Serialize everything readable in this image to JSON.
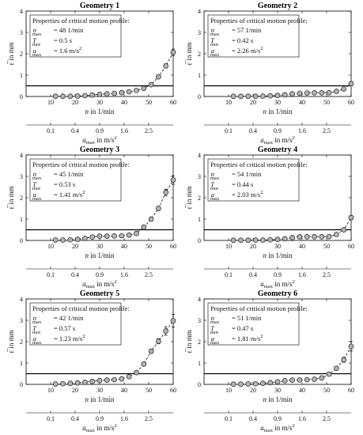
{
  "chart_data": [
    {
      "type": "scatter",
      "title": "Geometry 1",
      "x": [
        12,
        15,
        18,
        21,
        24,
        27,
        30,
        33,
        36,
        39,
        42,
        45,
        48,
        51,
        54,
        57,
        60
      ],
      "y": [
        0.01,
        0.01,
        0.01,
        0.02,
        0.04,
        0.07,
        0.1,
        0.12,
        0.15,
        0.18,
        0.22,
        0.28,
        0.38,
        0.55,
        0.92,
        1.43,
        2.07
      ],
      "err": [
        0.02,
        0.02,
        0.02,
        0.02,
        0.02,
        0.03,
        0.03,
        0.03,
        0.03,
        0.03,
        0.04,
        0.05,
        0.05,
        0.06,
        0.07,
        0.1,
        0.15
      ],
      "threshold": 0.5,
      "ylim": [
        0,
        4
      ],
      "xlim": [
        0,
        60
      ],
      "yticks": [
        0,
        1,
        2,
        3,
        4
      ],
      "xticks": [
        10,
        20,
        30,
        40,
        50,
        60
      ],
      "ylabel": "ε̅ in mm",
      "xlabel": "n in 1/min",
      "x2label": "a_max in m/s²",
      "x2ticks": [
        "0.1",
        "0.4",
        "0.9",
        "1.6",
        "2.5"
      ],
      "info": {
        "heading": "Properties of critical motion profile:",
        "n_max": "= 48 1/min",
        "T_mot": "= 0.5 s",
        "a_max": "= 1.6 m/s"
      }
    },
    {
      "type": "scatter",
      "title": "Geometry 2",
      "x": [
        12,
        15,
        18,
        21,
        24,
        27,
        30,
        33,
        36,
        39,
        42,
        45,
        48,
        51,
        54,
        57,
        60
      ],
      "y": [
        0.01,
        0.01,
        0.01,
        0.01,
        0.02,
        0.03,
        0.05,
        0.08,
        0.12,
        0.15,
        0.16,
        0.17,
        0.17,
        0.18,
        0.24,
        0.35,
        0.6
      ],
      "err": [
        0.02,
        0.02,
        0.02,
        0.02,
        0.02,
        0.02,
        0.03,
        0.03,
        0.03,
        0.03,
        0.03,
        0.03,
        0.03,
        0.04,
        0.04,
        0.05,
        0.1
      ],
      "threshold": 0.5,
      "ylim": [
        0,
        4
      ],
      "xlim": [
        0,
        60
      ],
      "yticks": [
        0,
        1,
        2,
        3,
        4
      ],
      "xticks": [
        10,
        20,
        30,
        40,
        50,
        60
      ],
      "ylabel": "ε̅ in mm",
      "xlabel": "n in 1/min",
      "x2label": "a_max in m/s²",
      "x2ticks": [
        "0.1",
        "0.4",
        "0.9",
        "1.6",
        "2.5"
      ],
      "info": {
        "heading": "Properties of critical motion profile:",
        "n_max": "= 57 1/min",
        "T_mot": "= 0.42 s",
        "a_max": "= 2.26 m/s"
      }
    },
    {
      "type": "scatter",
      "title": "Geometry 3",
      "x": [
        12,
        15,
        18,
        21,
        24,
        27,
        30,
        33,
        36,
        39,
        42,
        45,
        48,
        51,
        54,
        57,
        60
      ],
      "y": [
        0.02,
        0.02,
        0.03,
        0.05,
        0.1,
        0.16,
        0.2,
        0.2,
        0.21,
        0.22,
        0.25,
        0.33,
        0.62,
        1.0,
        1.5,
        2.25,
        2.83
      ],
      "err": [
        0.02,
        0.02,
        0.02,
        0.02,
        0.03,
        0.03,
        0.04,
        0.04,
        0.04,
        0.04,
        0.04,
        0.05,
        0.06,
        0.07,
        0.1,
        0.15,
        0.2
      ],
      "threshold": 0.5,
      "ylim": [
        0,
        4
      ],
      "xlim": [
        0,
        60
      ],
      "yticks": [
        0,
        1,
        2,
        3,
        4
      ],
      "xticks": [
        10,
        20,
        30,
        40,
        50,
        60
      ],
      "ylabel": "ε̅ in mm",
      "xlabel": "n in 1/min",
      "x2label": "a_max in m/s²",
      "x2ticks": [
        "0.1",
        "0.4",
        "0.9",
        "1.6",
        "2.5"
      ],
      "info": {
        "heading": "Properties of critical motion profile:",
        "n_max": "= 45 1/min",
        "T_mot": "= 0.53 s",
        "a_max": "= 1.41 m/s"
      }
    },
    {
      "type": "scatter",
      "title": "Geometry 4",
      "x": [
        12,
        15,
        18,
        21,
        24,
        27,
        30,
        33,
        36,
        39,
        42,
        45,
        48,
        51,
        54,
        57,
        60
      ],
      "y": [
        0.01,
        0.01,
        0.01,
        0.02,
        0.02,
        0.03,
        0.05,
        0.08,
        0.13,
        0.17,
        0.17,
        0.17,
        0.17,
        0.18,
        0.28,
        0.5,
        1.07
      ],
      "err": [
        0.02,
        0.02,
        0.02,
        0.02,
        0.02,
        0.02,
        0.03,
        0.03,
        0.03,
        0.03,
        0.03,
        0.03,
        0.03,
        0.04,
        0.05,
        0.06,
        0.1
      ],
      "threshold": 0.5,
      "ylim": [
        0,
        4
      ],
      "xlim": [
        0,
        60
      ],
      "yticks": [
        0,
        1,
        2,
        3,
        4
      ],
      "xticks": [
        10,
        20,
        30,
        40,
        50,
        60
      ],
      "ylabel": "ε̅ in mm",
      "xlabel": "n in 1/min",
      "x2label": "a_max in m/s²",
      "x2ticks": [
        "0.1",
        "0.4",
        "0.9",
        "1.6",
        "2.5"
      ],
      "info": {
        "heading": "Properties of critical motion profile:",
        "n_max": "= 54 1/min",
        "T_mot": "= 0.44 s",
        "a_max": "= 2.03 m/s"
      }
    },
    {
      "type": "scatter",
      "title": "Geometry 5",
      "x": [
        12,
        15,
        18,
        21,
        24,
        27,
        30,
        33,
        36,
        39,
        42,
        45,
        48,
        51,
        54,
        57,
        60
      ],
      "y": [
        0.02,
        0.03,
        0.05,
        0.07,
        0.1,
        0.14,
        0.18,
        0.2,
        0.22,
        0.26,
        0.36,
        0.55,
        0.95,
        1.55,
        2.02,
        2.5,
        2.98
      ],
      "err": [
        0.02,
        0.02,
        0.02,
        0.02,
        0.03,
        0.03,
        0.04,
        0.04,
        0.04,
        0.05,
        0.05,
        0.06,
        0.08,
        0.1,
        0.12,
        0.2,
        0.3
      ],
      "threshold": 0.5,
      "ylim": [
        0,
        4
      ],
      "xlim": [
        0,
        60
      ],
      "yticks": [
        0,
        1,
        2,
        3,
        4
      ],
      "xticks": [
        10,
        20,
        30,
        40,
        50,
        60
      ],
      "ylabel": "ε̅ in mm",
      "xlabel": "n in 1/min",
      "x2label": "a_max in m/s²",
      "x2ticks": [
        "0.1",
        "0.4",
        "0.9",
        "1.6",
        "2.5"
      ],
      "info": {
        "heading": "Properties of critical motion profile:",
        "n_max": "= 42 1/min",
        "T_mot": "= 0.57 s",
        "a_max": "= 1.23 m/s"
      }
    },
    {
      "type": "scatter",
      "title": "Geometry 6",
      "x": [
        12,
        15,
        18,
        21,
        24,
        27,
        30,
        33,
        36,
        39,
        42,
        45,
        48,
        51,
        54,
        57,
        60
      ],
      "y": [
        0.01,
        0.01,
        0.02,
        0.03,
        0.05,
        0.08,
        0.12,
        0.17,
        0.2,
        0.21,
        0.22,
        0.24,
        0.3,
        0.48,
        0.75,
        1.15,
        1.78
      ],
      "err": [
        0.02,
        0.02,
        0.02,
        0.02,
        0.02,
        0.03,
        0.03,
        0.03,
        0.04,
        0.04,
        0.04,
        0.04,
        0.05,
        0.06,
        0.08,
        0.12,
        0.22
      ],
      "threshold": 0.5,
      "ylim": [
        0,
        4
      ],
      "xlim": [
        0,
        60
      ],
      "yticks": [
        0,
        1,
        2,
        3,
        4
      ],
      "xticks": [
        10,
        20,
        30,
        40,
        50,
        60
      ],
      "ylabel": "ε̅ in mm",
      "xlabel": "n in 1/min",
      "x2label": "a_max in m/s²",
      "x2ticks": [
        "0.1",
        "0.4",
        "0.9",
        "1.6",
        "2.5"
      ],
      "info": {
        "heading": "Properties of critical motion profile:",
        "n_max": "= 51 1/min",
        "T_mot": "= 0.47 s",
        "a_max": "= 1.81 m/s"
      }
    }
  ],
  "colors": {
    "marker_fill": "#b3b3b3",
    "marker_stroke": "#222222",
    "line": "#111111",
    "threshold": "#000000"
  }
}
